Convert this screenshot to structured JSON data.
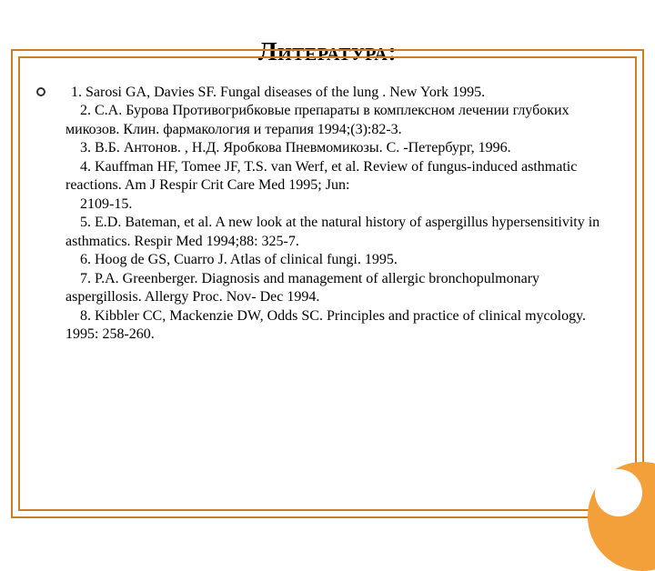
{
  "colors": {
    "accent": "#f4a03a",
    "frame_outer": "#c97f22",
    "frame_inner": "#c97f22",
    "text": "#000000"
  },
  "title": {
    "text": "Литература:",
    "fontsize": 28,
    "weight": "bold"
  },
  "body_fontsize": 16,
  "references": [
    "1. Sarosi GA, Davies SF. Fungal diseases of the lung . New York 1995.",
    "2. С.А. Бурова Противогрибковые препараты в комплексном лечении глубоких микозов. Клин. фармакология и терапия 1994;(3):82-3.",
    "3. В.Б. Антонов. , Н.Д. Яробкова Пневмомикозы. С. -Петербург, 1996.",
    "4. Kauffman HF, Tomee JF, T.S. van Werf, et al. Review of fungus-induced asthmatic reactions. Am J Respir Crit Care Med 1995; Jun:",
    "2109-15.",
    "5. E.D. Bateman, et al. A new look at the natural history of aspergillus hypersensitivity in asthmatics. Respir Med 1994;88: 325-7.",
    "6. Hoog de GS, Cuarro J. Atlas of clinical fungi. 1995.",
    "7. P.A. Greenberger. Diagnosis and management of allergic bronchopulmonary aspergillosis. Allergy Proc. Nov- Dec 1994.",
    "8. Kibbler CC, Mackenzie DW, Odds SC. Principles and practice of clinical mycology. 1995: 258-260."
  ]
}
